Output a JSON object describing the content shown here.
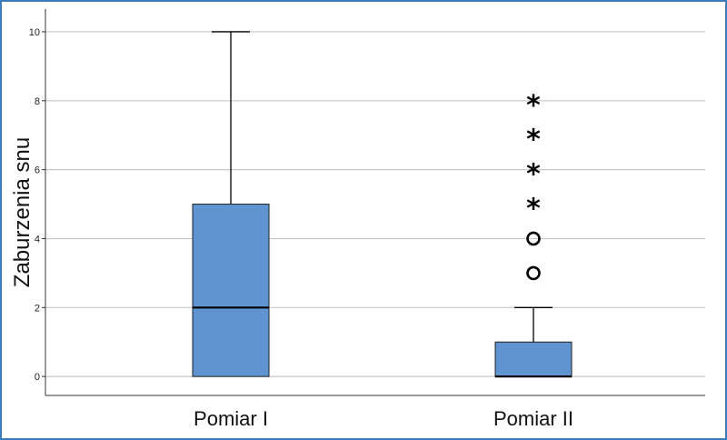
{
  "chart_data": {
    "type": "boxplot",
    "title": "",
    "xlabel": "",
    "ylabel": "Zaburzenia snu",
    "ylim": [
      -0.55,
      10.5
    ],
    "yticks": [
      0,
      2,
      4,
      6,
      8,
      10
    ],
    "grid": true,
    "colors": {
      "box_fill": "#5f94d0",
      "grid": "#c8c8c8",
      "frame_border": "#3c7bbf"
    },
    "categories": [
      "Pomiar I",
      "Pomiar II"
    ],
    "boxes": [
      {
        "category": "Pomiar I",
        "whisker_low": 0,
        "q1": 0,
        "median": 2,
        "q3": 5,
        "whisker_high": 10,
        "outliers": [],
        "extremes": []
      },
      {
        "category": "Pomiar II",
        "whisker_low": 0,
        "q1": 0,
        "median": 0,
        "q3": 1,
        "whisker_high": 2,
        "outliers": [
          3,
          4
        ],
        "extremes": [
          5,
          6,
          7,
          8
        ]
      }
    ]
  }
}
